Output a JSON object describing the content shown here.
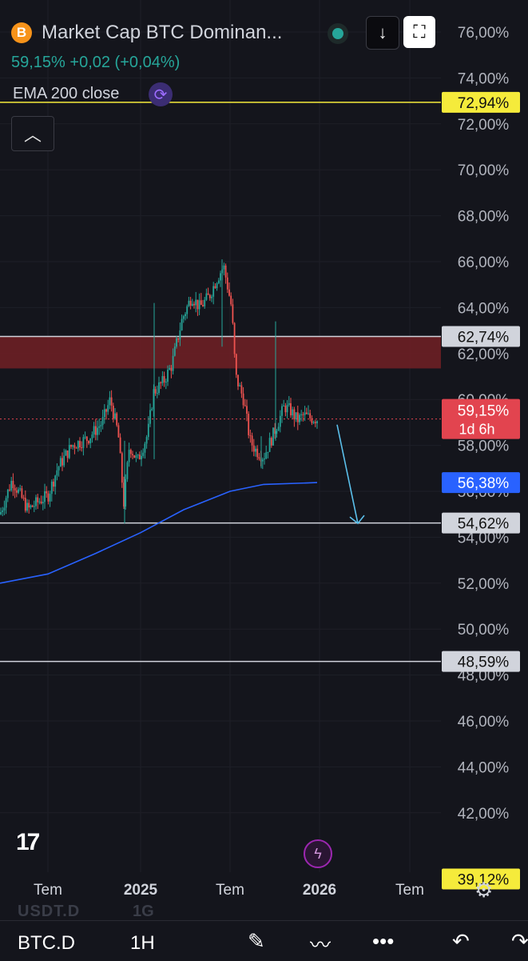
{
  "header": {
    "symbol_icon": "B",
    "title": "Market Cap BTC Dominan...",
    "change": "59,15%  +0,02  (+0,04%)",
    "indicator_label": "EMA 200 close",
    "collapse_icon": "chevron-up-icon",
    "download_icon": "↓",
    "fullscreen_icon": "⛶"
  },
  "chart_data": {
    "type": "candlestick",
    "ylim": [
      39.12,
      76.0
    ],
    "y_ticks": [
      "76,00%",
      "74,00%",
      "72,00%",
      "70,00%",
      "68,00%",
      "66,00%",
      "64,00%",
      "62,00%",
      "60,00%",
      "58,00%",
      "56,00%",
      "54,00%",
      "52,00%",
      "50,00%",
      "48,00%",
      "46,00%",
      "44,00%",
      "42,00%"
    ],
    "x_labels": [
      "Tem",
      "2025",
      "Tem",
      "2026",
      "Tem"
    ],
    "horizontal_lines": [
      {
        "value": 72.94,
        "label": "72,94%",
        "color": "#f5eb3b"
      },
      {
        "value": 62.74,
        "label": "62,74%",
        "color": "#d1d4dc"
      },
      {
        "value": 54.62,
        "label": "54,62%",
        "color": "#d1d4dc"
      },
      {
        "value": 48.59,
        "label": "48,59%",
        "color": "#d1d4dc"
      }
    ],
    "resistance_zone": [
      61.35,
      62.74
    ],
    "current_price": {
      "value": 59.15,
      "label": "59,15%",
      "countdown": "1d 6h",
      "color": "#e2444f"
    },
    "ema": {
      "name": "EMA 200 close",
      "value": 56.38,
      "label": "56,38%",
      "color": "#2962ff"
    },
    "bottom_badge": {
      "value": 39.12,
      "label": "39,12%"
    },
    "projection_arrow": {
      "from": 58.9,
      "to": 54.6
    },
    "bull_color": "#26a69a",
    "bear_color": "#ef5350"
  },
  "footer": {
    "ghost_symbol": "USDT.D",
    "ghost_timeframe": "1G",
    "symbol": "BTC.D",
    "timeframe": "1H",
    "settings_icon": "gear-icon",
    "draw_icon": "pen-icon",
    "indicators_icon": "indicators-icon",
    "more_icon": "more-icon",
    "undo_icon": "undo-icon"
  }
}
